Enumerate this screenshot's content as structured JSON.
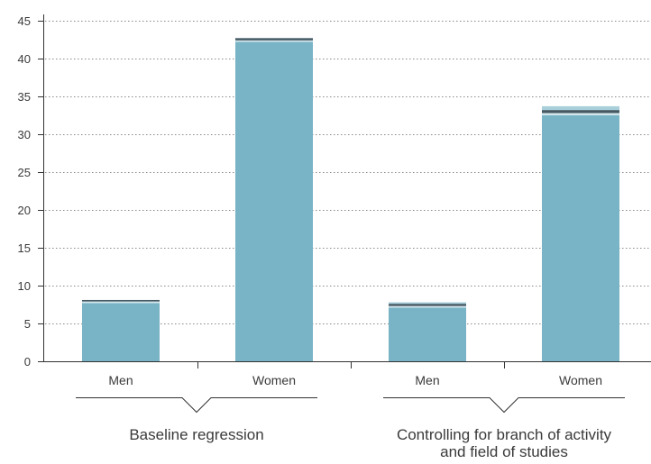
{
  "chart_data": {
    "type": "bar",
    "stacked": true,
    "ylim": [
      0,
      45
    ],
    "yticks": [
      0,
      5,
      10,
      15,
      20,
      25,
      30,
      35,
      40,
      45
    ],
    "grid": "horizontal-dotted",
    "groups": [
      {
        "label": "Baseline regression",
        "bars": [
          {
            "category": "Men",
            "segments": [
              7.7,
              0.2,
              0.2
            ]
          },
          {
            "category": "Women",
            "segments": [
              42.2,
              0.2,
              0.3
            ]
          }
        ]
      },
      {
        "label": "Controlling for branch of activity and field of studies",
        "label_lines": [
          "Controlling for branch of activity",
          "and field of studies"
        ],
        "bars": [
          {
            "category": "Men",
            "segments": [
              7.1,
              0.2,
              0.3,
              0.2
            ]
          },
          {
            "category": "Women",
            "segments": [
              32.5,
              0.3,
              0.4,
              0.5
            ]
          }
        ]
      }
    ],
    "segment_colors": [
      "#78b4c6",
      "#d3e6ec",
      "#465a64",
      "#a9cfdb"
    ],
    "axis_color": "#333333",
    "grid_color": "#8a8a8a"
  }
}
